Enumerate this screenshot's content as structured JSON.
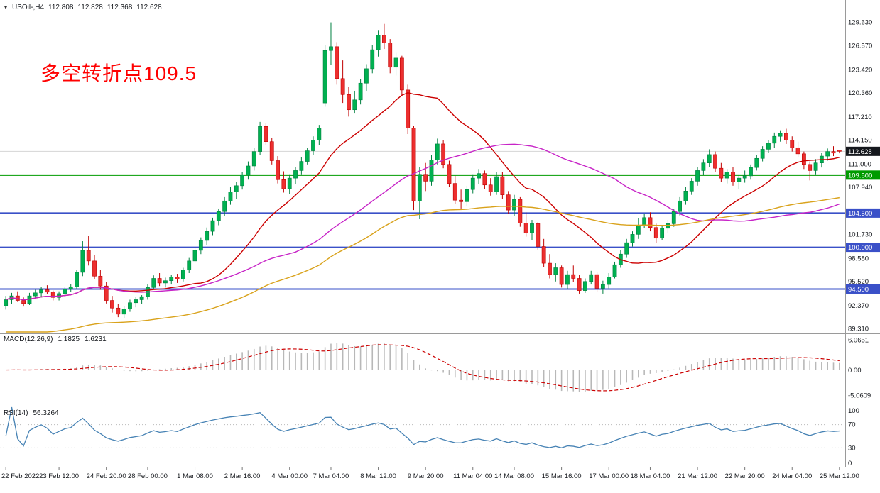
{
  "header": {
    "symbol_icon": "▾",
    "symbol_period": "USOil-,H4",
    "open": "112.808",
    "high": "112.828",
    "low": "112.368",
    "close": "112.628"
  },
  "annotation": {
    "text": "多空转折点109.5",
    "color": "#FF0000"
  },
  "chart_data": {
    "type": "candlestick",
    "symbol": "USOil-",
    "period": "H4",
    "ohlc": [
      [
        92.3,
        93.6,
        91.8,
        93.1
      ],
      [
        93.1,
        94.0,
        92.5,
        93.6
      ],
      [
        93.6,
        94.2,
        92.8,
        93.0
      ],
      [
        93.0,
        93.4,
        92.2,
        92.6
      ],
      [
        92.6,
        94.0,
        92.4,
        93.6
      ],
      [
        93.6,
        94.4,
        93.2,
        94.0
      ],
      [
        94.0,
        94.8,
        93.4,
        94.4
      ],
      [
        94.4,
        95.0,
        93.8,
        94.1
      ],
      [
        94.1,
        94.3,
        93.0,
        93.4
      ],
      [
        93.4,
        94.2,
        93.0,
        93.9
      ],
      [
        93.9,
        94.8,
        93.6,
        94.5
      ],
      [
        94.5,
        95.2,
        94.1,
        94.8
      ],
      [
        94.8,
        97.0,
        94.5,
        96.7
      ],
      [
        96.7,
        100.8,
        96.2,
        99.6
      ],
      [
        99.6,
        101.5,
        97.6,
        98.2
      ],
      [
        98.2,
        99.0,
        95.8,
        96.2
      ],
      [
        96.2,
        97.0,
        94.4,
        94.9
      ],
      [
        94.9,
        95.4,
        92.6,
        93.0
      ],
      [
        93.0,
        93.6,
        91.4,
        92.0
      ],
      [
        92.0,
        92.5,
        90.8,
        91.2
      ],
      [
        91.2,
        92.3,
        90.7,
        91.9
      ],
      [
        91.9,
        93.1,
        91.5,
        92.7
      ],
      [
        92.7,
        93.5,
        92.1,
        93.1
      ],
      [
        93.1,
        93.7,
        92.5,
        93.5
      ],
      [
        93.5,
        95.1,
        93.1,
        94.7
      ],
      [
        94.7,
        96.3,
        94.4,
        95.9
      ],
      [
        95.9,
        96.6,
        94.9,
        95.3
      ],
      [
        95.3,
        96.0,
        94.7,
        95.6
      ],
      [
        95.6,
        96.4,
        95.1,
        96.1
      ],
      [
        96.1,
        96.5,
        95.3,
        95.8
      ],
      [
        95.8,
        97.3,
        95.5,
        97.0
      ],
      [
        97.0,
        98.6,
        96.6,
        98.2
      ],
      [
        98.2,
        99.9,
        97.9,
        99.6
      ],
      [
        99.6,
        101.3,
        99.1,
        100.9
      ],
      [
        100.9,
        102.6,
        100.3,
        102.1
      ],
      [
        102.1,
        103.9,
        101.6,
        103.5
      ],
      [
        103.5,
        105.1,
        102.9,
        104.7
      ],
      [
        104.7,
        106.6,
        104.1,
        106.1
      ],
      [
        106.1,
        107.9,
        105.6,
        107.3
      ],
      [
        107.3,
        108.6,
        106.4,
        108.1
      ],
      [
        108.1,
        109.9,
        107.6,
        109.5
      ],
      [
        109.5,
        111.3,
        108.9,
        110.7
      ],
      [
        110.7,
        113.1,
        110.1,
        112.6
      ],
      [
        112.6,
        116.5,
        112.1,
        115.9
      ],
      [
        115.9,
        116.4,
        113.4,
        113.9
      ],
      [
        113.9,
        114.4,
        110.9,
        111.4
      ],
      [
        111.4,
        112.0,
        108.4,
        108.9
      ],
      [
        108.9,
        110.0,
        107.2,
        107.7
      ],
      [
        107.7,
        109.6,
        107.0,
        109.1
      ],
      [
        109.1,
        110.6,
        108.3,
        110.1
      ],
      [
        110.1,
        111.9,
        109.6,
        111.3
      ],
      [
        111.3,
        113.1,
        110.9,
        112.7
      ],
      [
        112.7,
        114.6,
        112.1,
        114.1
      ],
      [
        114.1,
        116.1,
        113.5,
        115.7
      ],
      [
        119.0,
        126.6,
        118.5,
        125.9
      ],
      [
        125.9,
        129.6,
        124.0,
        126.4
      ],
      [
        126.4,
        127.0,
        121.4,
        122.2
      ],
      [
        122.2,
        124.6,
        119.0,
        120.1
      ],
      [
        120.1,
        121.1,
        117.2,
        118.1
      ],
      [
        118.1,
        120.6,
        117.6,
        119.4
      ],
      [
        119.4,
        122.1,
        118.8,
        121.6
      ],
      [
        121.6,
        124.1,
        120.6,
        123.5
      ],
      [
        123.5,
        126.6,
        122.9,
        126.0
      ],
      [
        126.0,
        128.6,
        125.1,
        127.9
      ],
      [
        127.9,
        129.4,
        126.1,
        126.9
      ],
      [
        126.9,
        127.4,
        122.9,
        123.7
      ],
      [
        123.7,
        125.6,
        122.6,
        124.9
      ],
      [
        124.9,
        125.2,
        119.9,
        120.7
      ],
      [
        120.7,
        121.4,
        114.9,
        115.7
      ],
      [
        115.7,
        116.0,
        104.9,
        106.1
      ],
      [
        106.1,
        110.6,
        103.7,
        109.6
      ],
      [
        109.6,
        111.1,
        107.4,
        108.7
      ],
      [
        108.7,
        112.1,
        108.1,
        111.5
      ],
      [
        111.5,
        114.3,
        110.9,
        113.6
      ],
      [
        113.6,
        114.1,
        110.4,
        110.9
      ],
      [
        110.9,
        111.4,
        107.9,
        108.4
      ],
      [
        108.4,
        109.4,
        105.7,
        106.2
      ],
      [
        106.2,
        107.6,
        105.1,
        106.0
      ],
      [
        106.0,
        108.1,
        105.4,
        107.6
      ],
      [
        107.6,
        109.6,
        107.1,
        109.1
      ],
      [
        109.1,
        110.3,
        108.3,
        109.7
      ],
      [
        109.7,
        110.1,
        107.7,
        108.2
      ],
      [
        108.2,
        109.1,
        106.8,
        107.3
      ],
      [
        107.3,
        109.9,
        106.9,
        109.3
      ],
      [
        109.3,
        109.9,
        106.4,
        106.9
      ],
      [
        106.9,
        107.4,
        104.4,
        104.9
      ],
      [
        104.9,
        106.9,
        104.1,
        106.3
      ],
      [
        106.3,
        106.6,
        102.7,
        103.2
      ],
      [
        103.2,
        104.6,
        101.4,
        101.9
      ],
      [
        101.9,
        103.6,
        100.9,
        103.1
      ],
      [
        103.1,
        103.3,
        99.7,
        100.1
      ],
      [
        100.1,
        101.1,
        97.4,
        97.9
      ],
      [
        97.9,
        99.1,
        95.9,
        96.4
      ],
      [
        96.4,
        97.9,
        95.5,
        97.3
      ],
      [
        97.3,
        97.6,
        94.7,
        95.1
      ],
      [
        95.1,
        96.9,
        94.5,
        96.4
      ],
      [
        96.4,
        97.6,
        95.4,
        95.9
      ],
      [
        95.9,
        96.4,
        93.9,
        94.3
      ],
      [
        94.3,
        95.9,
        94.0,
        95.5
      ],
      [
        95.5,
        96.9,
        95.1,
        96.4
      ],
      [
        96.4,
        96.7,
        94.1,
        94.6
      ],
      [
        94.6,
        95.6,
        93.9,
        95.1
      ],
      [
        95.1,
        96.6,
        94.6,
        96.1
      ],
      [
        96.1,
        98.1,
        95.9,
        97.7
      ],
      [
        97.7,
        99.6,
        97.3,
        99.1
      ],
      [
        99.1,
        101.1,
        98.6,
        100.6
      ],
      [
        100.6,
        102.1,
        100.1,
        101.7
      ],
      [
        101.7,
        103.8,
        101.1,
        102.9
      ],
      [
        102.9,
        104.4,
        102.5,
        103.9
      ],
      [
        103.9,
        104.6,
        102.1,
        102.6
      ],
      [
        102.6,
        103.1,
        100.6,
        101.2
      ],
      [
        101.2,
        102.9,
        100.9,
        102.5
      ],
      [
        102.5,
        103.6,
        101.9,
        103.1
      ],
      [
        103.1,
        105.0,
        102.7,
        104.7
      ],
      [
        104.7,
        106.6,
        104.2,
        106.1
      ],
      [
        106.1,
        107.9,
        105.6,
        107.4
      ],
      [
        107.4,
        109.1,
        106.9,
        108.7
      ],
      [
        108.7,
        110.6,
        108.1,
        110.1
      ],
      [
        110.1,
        111.6,
        109.5,
        111.1
      ],
      [
        111.1,
        112.9,
        110.6,
        112.2
      ],
      [
        112.2,
        112.6,
        109.9,
        110.4
      ],
      [
        110.4,
        111.1,
        108.6,
        109.1
      ],
      [
        109.1,
        110.3,
        108.4,
        109.9
      ],
      [
        109.9,
        110.6,
        108.1,
        108.6
      ],
      [
        108.6,
        109.6,
        107.7,
        109.1
      ],
      [
        109.1,
        110.1,
        108.5,
        109.4
      ],
      [
        109.4,
        110.9,
        108.9,
        110.5
      ],
      [
        110.5,
        112.1,
        110.1,
        111.7
      ],
      [
        111.7,
        113.3,
        111.3,
        112.9
      ],
      [
        112.9,
        114.1,
        112.4,
        113.7
      ],
      [
        113.7,
        115.1,
        113.1,
        114.6
      ],
      [
        114.6,
        115.4,
        113.9,
        115.0
      ],
      [
        115.0,
        115.6,
        113.6,
        114.1
      ],
      [
        114.1,
        114.6,
        112.6,
        113.1
      ],
      [
        113.1,
        113.9,
        111.9,
        112.3
      ],
      [
        112.3,
        112.6,
        110.3,
        110.9
      ],
      [
        110.9,
        111.3,
        108.8,
        110.1
      ],
      [
        110.1,
        111.6,
        109.6,
        111.1
      ],
      [
        111.1,
        112.4,
        110.5,
        112.0
      ],
      [
        112.0,
        113.0,
        111.4,
        112.6
      ],
      [
        112.6,
        113.3,
        112.0,
        112.4
      ],
      [
        112.81,
        112.83,
        112.37,
        112.63
      ]
    ],
    "candle_colors": {
      "up": "#00B050",
      "up_stroke": "#008040",
      "down": "#EC2F2F",
      "down_stroke": "#C00000"
    },
    "price_axis": {
      "visible_range": [
        88.85,
        131.8
      ],
      "ticks": [
        {
          "value": 129.63,
          "label": "129.630"
        },
        {
          "value": 126.57,
          "label": "126.570"
        },
        {
          "value": 123.42,
          "label": "123.420"
        },
        {
          "value": 120.36,
          "label": "120.360"
        },
        {
          "value": 117.21,
          "label": "117.210"
        },
        {
          "value": 114.15,
          "label": "114.150"
        },
        {
          "value": 111.0,
          "label": "111.000"
        },
        {
          "value": 107.94,
          "label": "107.940"
        },
        {
          "value": 101.73,
          "label": "101.730"
        },
        {
          "value": 98.58,
          "label": "98.580"
        },
        {
          "value": 95.52,
          "label": "95.520"
        },
        {
          "value": 92.37,
          "label": "92.370"
        },
        {
          "value": 89.31,
          "label": "89.310"
        }
      ]
    },
    "overlays": {
      "current_price": {
        "value": 112.628,
        "label": "112.628",
        "badge_color": "#15181d"
      },
      "hlines": [
        {
          "value": 109.5,
          "label": "109.500",
          "color": "#009B00"
        },
        {
          "value": 104.5,
          "label": "104.500",
          "color": "#3A50C8"
        },
        {
          "value": 100.0,
          "label": "100.000",
          "color": "#3A50C8"
        },
        {
          "value": 94.5,
          "label": "94.500",
          "color": "#3A50C8"
        }
      ],
      "moving_averages": [
        {
          "name": "ma-fast",
          "method": "sma",
          "period": 20,
          "color": "#CC0000"
        },
        {
          "name": "ma-medium",
          "method": "sma",
          "period": 50,
          "color": "#C724C7"
        },
        {
          "name": "ma-slow",
          "method": "ema",
          "period": 100,
          "seed": 88,
          "color": "#D9A21B"
        }
      ]
    },
    "macd": {
      "label": "MACD(12,26,9)",
      "fast": 12,
      "slow": 26,
      "signal": 9,
      "main_value": "1.1825",
      "signal_value": "1.6231",
      "ticks": [
        {
          "value": 6.0651,
          "label": "6.0651"
        },
        {
          "value": 0,
          "label": "0.00"
        },
        {
          "value": -5.0609,
          "label": "-5.0609"
        }
      ],
      "range": [
        7.2,
        -6.9
      ],
      "histogram_color": "#B8B8B8",
      "signal_color": "#CC0000"
    },
    "rsi": {
      "label": "RSI(14)",
      "period": 14,
      "value": "56.3264",
      "ticks": [
        {
          "value": 100,
          "label": "100"
        },
        {
          "value": 70,
          "label": "70"
        },
        {
          "value": 30,
          "label": "30"
        },
        {
          "value": 0,
          "label": "0"
        }
      ],
      "levels": [
        70,
        30
      ],
      "range": [
        100,
        0
      ],
      "line_color": "#4682B4"
    },
    "time_axis": {
      "labels": [
        {
          "index": 0,
          "label": "22 Feb 2022"
        },
        {
          "index": 9,
          "label": "23 Feb 12:00"
        },
        {
          "index": 17,
          "label": "24 Feb 20:00"
        },
        {
          "index": 24,
          "label": "28 Feb 00:00"
        },
        {
          "index": 32,
          "label": "1 Mar 08:00"
        },
        {
          "index": 40,
          "label": "2 Mar 16:00"
        },
        {
          "index": 48,
          "label": "4 Mar 00:00"
        },
        {
          "index": 55,
          "label": "7 Mar 04:00"
        },
        {
          "index": 63,
          "label": "8 Mar 12:00"
        },
        {
          "index": 71,
          "label": "9 Mar 20:00"
        },
        {
          "index": 79,
          "label": "11 Mar 04:00"
        },
        {
          "index": 86,
          "label": "14 Mar 08:00"
        },
        {
          "index": 94,
          "label": "15 Mar 16:00"
        },
        {
          "index": 102,
          "label": "17 Mar 00:00"
        },
        {
          "index": 109,
          "label": "18 Mar 04:00"
        },
        {
          "index": 117,
          "label": "21 Mar 12:00"
        },
        {
          "index": 125,
          "label": "22 Mar 20:00"
        },
        {
          "index": 133,
          "label": "24 Mar 04:00"
        },
        {
          "index": 141,
          "label": "25 Mar 12:00"
        }
      ]
    }
  }
}
